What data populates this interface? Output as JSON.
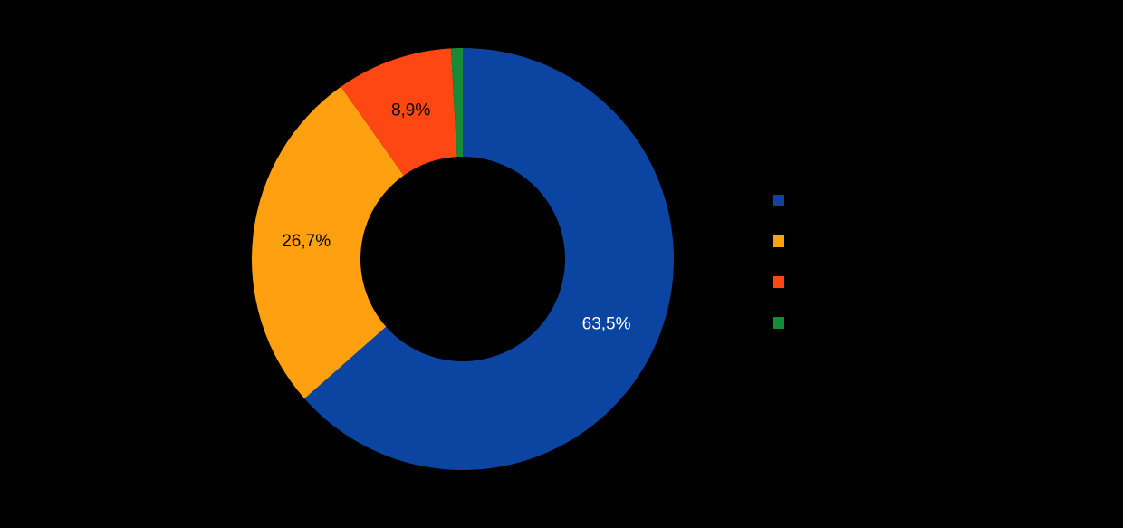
{
  "chart_data": {
    "type": "pie",
    "subtype": "donut",
    "title": "",
    "legend_position": "right",
    "background_color": "#000000",
    "slices": [
      {
        "label": "",
        "value": 63.5,
        "display": "63,5%",
        "color": "#0b45a1",
        "label_color": "#ffffff",
        "show_label": true
      },
      {
        "label": "",
        "value": 26.7,
        "display": "26,7%",
        "color": "#ffa011",
        "label_color": "#000000",
        "show_label": true
      },
      {
        "label": "",
        "value": 8.9,
        "display": "8,9%",
        "color": "#ff4713",
        "label_color": "#000000",
        "show_label": true
      },
      {
        "label": "",
        "value": 0.9,
        "display": "",
        "color": "#168a38",
        "label_color": "#000000",
        "show_label": false
      }
    ]
  }
}
